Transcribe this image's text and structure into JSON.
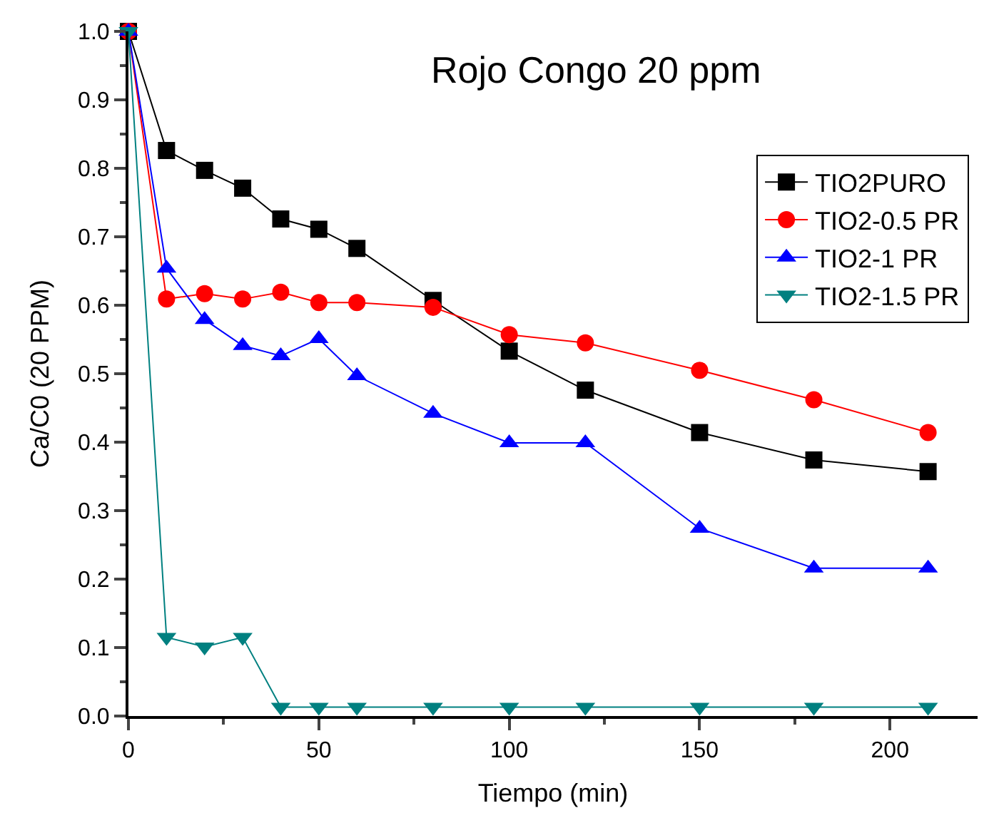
{
  "chart_data": {
    "type": "line",
    "title": "Rojo Congo 20 ppm",
    "xlabel": "Tiempo (min)",
    "ylabel": "Ca/C0 (20 PPM)",
    "x": [
      0,
      10,
      20,
      30,
      40,
      50,
      60,
      80,
      100,
      120,
      150,
      180,
      210
    ],
    "series": [
      {
        "name": "TIO2PURO",
        "color": "#000000",
        "marker": "square",
        "values": [
          1.0,
          0.826,
          0.797,
          0.771,
          0.726,
          0.711,
          0.683,
          0.607,
          0.533,
          0.476,
          0.414,
          0.374,
          0.357
        ]
      },
      {
        "name": "TIO2-0.5 PR",
        "color": "#ff0000",
        "marker": "circle",
        "values": [
          1.0,
          0.609,
          0.617,
          0.609,
          0.619,
          0.604,
          0.604,
          0.597,
          0.557,
          0.545,
          0.505,
          0.462,
          0.414
        ]
      },
      {
        "name": "TIO2-1 PR",
        "color": "#0000ff",
        "marker": "triangle",
        "values": [
          1.0,
          0.654,
          0.579,
          0.541,
          0.526,
          0.551,
          0.497,
          0.442,
          0.399,
          0.399,
          0.274,
          0.216,
          0.216
        ]
      },
      {
        "name": "TIO2-1.5 PR",
        "color": "#008080",
        "marker": "triangle-down",
        "values": [
          1.0,
          0.115,
          0.101,
          0.115,
          0.013,
          0.013,
          0.013,
          0.013,
          0.013,
          0.013,
          0.013,
          0.013,
          0.013
        ]
      }
    ],
    "xlim": [
      0,
      223
    ],
    "xticks": [
      0,
      50,
      100,
      150,
      200
    ],
    "ylim": [
      0,
      1.0
    ],
    "yticks": [
      {
        "value": 0,
        "label": "0.0"
      },
      {
        "value": 0.1,
        "label": "0.1"
      },
      {
        "value": 0.2,
        "label": "0.2"
      },
      {
        "value": 0.3,
        "label": "0.3"
      },
      {
        "value": 0.4,
        "label": "0.4"
      },
      {
        "value": 0.5,
        "label": "0.5"
      },
      {
        "value": 0.6,
        "label": "0.6"
      },
      {
        "value": 0.7,
        "label": "0.7"
      },
      {
        "value": 0.8,
        "label": "0.8"
      },
      {
        "value": 0.9,
        "label": "0.9"
      },
      {
        "value": 1.0,
        "label": "1.0"
      }
    ],
    "legend": "top right",
    "line_style": "solid"
  }
}
